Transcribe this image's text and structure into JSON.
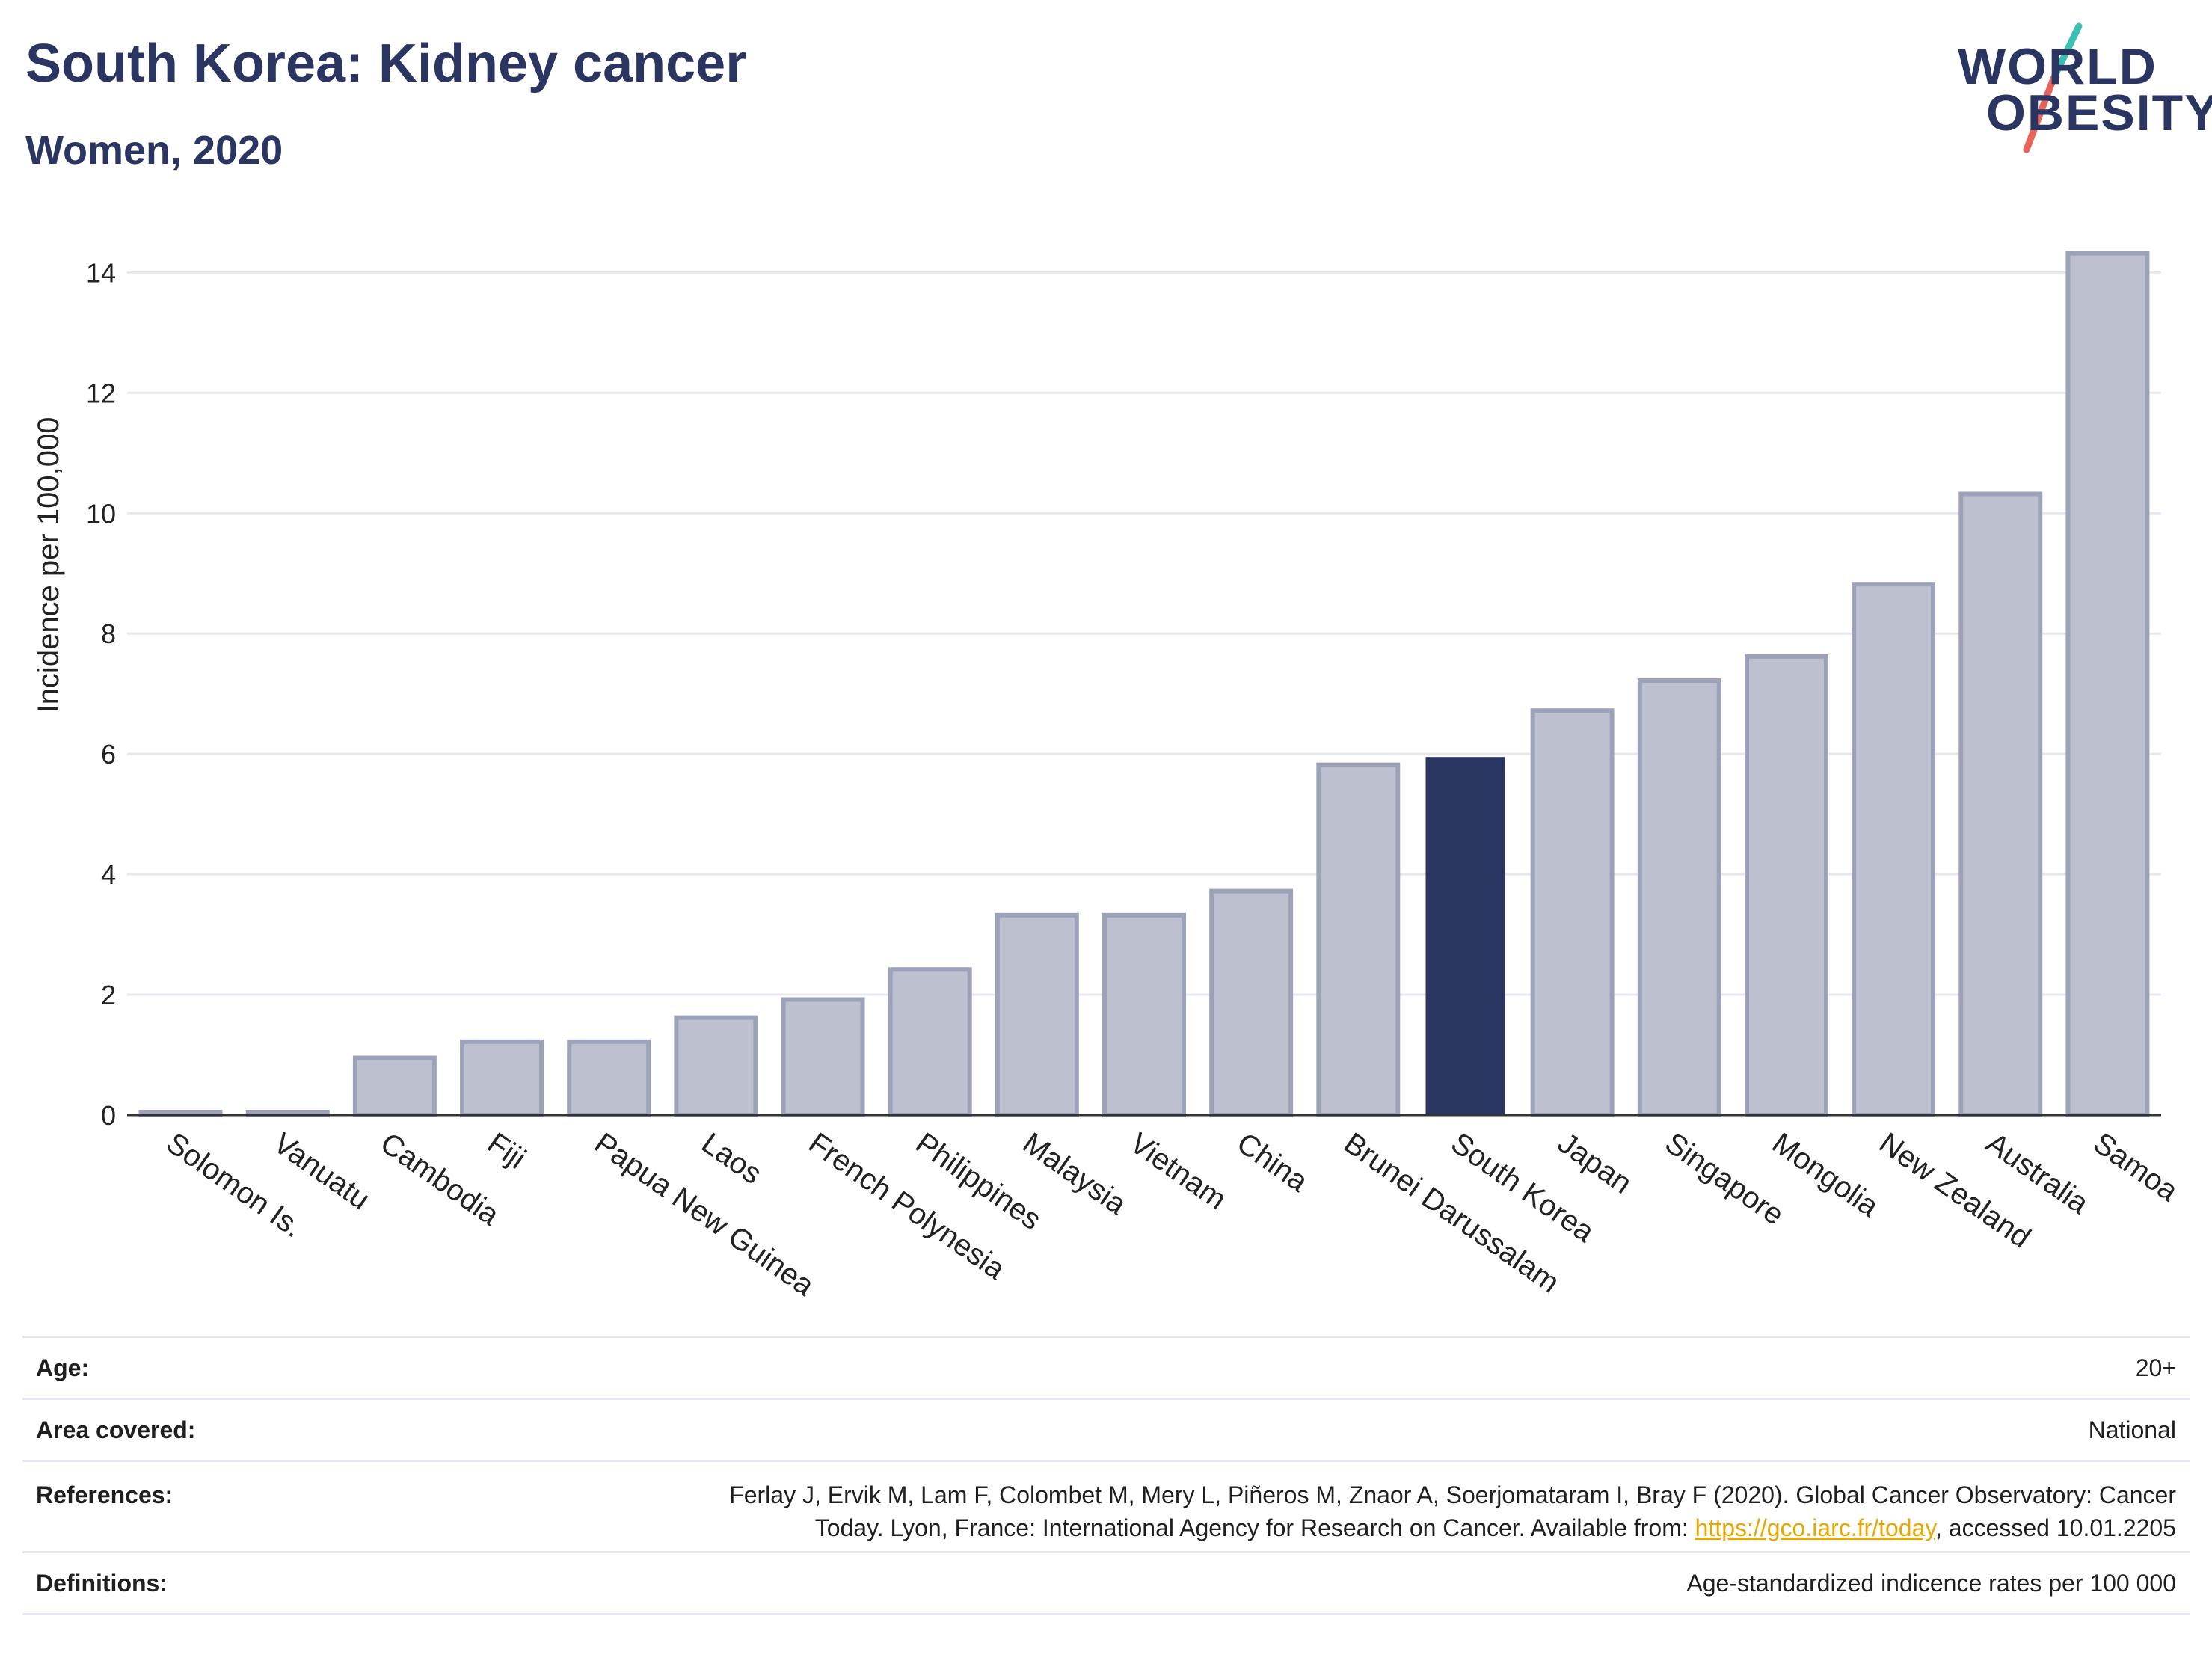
{
  "header": {
    "title": "South Korea: Kidney cancer",
    "subtitle": "Women, 2020"
  },
  "logo": {
    "line1": "WORLD",
    "line2": "OBESITY",
    "accent_colors": [
      "#3bbfb3",
      "#e8635a"
    ]
  },
  "colors": {
    "bar_fill": "#bdc1cf",
    "bar_stroke": "#9ca2b8",
    "highlight": "#2b3562",
    "grid": "#e6e8ef",
    "axis": "#333333"
  },
  "chart_data": {
    "type": "bar",
    "title": "South Korea: Kidney cancer",
    "subtitle": "Women, 2020",
    "ylabel": "Incidence per 100,000",
    "xlabel": "",
    "ylim": [
      0,
      14.8
    ],
    "yticks": [
      0,
      2,
      4,
      6,
      8,
      10,
      12,
      14
    ],
    "grid": true,
    "highlight": "South Korea",
    "categories": [
      "Solomon Is.",
      "Vanuatu",
      "Cambodia",
      "Fiji",
      "Papua New Guinea",
      "Laos",
      "French Polynesia",
      "Philippines",
      "Malaysia",
      "Vietnam",
      "China",
      "Brunei Darussalam",
      "South Korea",
      "Japan",
      "Singapore",
      "Mongolia",
      "New Zealand",
      "Australia",
      "Samoa"
    ],
    "values": [
      0.05,
      0.05,
      0.95,
      1.22,
      1.22,
      1.62,
      1.92,
      2.42,
      3.32,
      3.32,
      3.72,
      5.82,
      5.95,
      6.72,
      7.22,
      7.62,
      8.82,
      10.32,
      14.32
    ]
  },
  "info": {
    "age_label": "Age:",
    "age_value": "20+",
    "area_label": "Area covered:",
    "area_value": "National",
    "ref_label": "References:",
    "ref_text_1": "Ferlay J, Ervik M, Lam F, Colombet M, Mery L, Piñeros M, Znaor A, Soerjomataram I, Bray F (2020). Global Cancer Observatory: Cancer",
    "ref_text_2": "Today. Lyon, France: International Agency for Research on Cancer. Available from: ",
    "ref_link": "https://gco.iarc.fr/today",
    "ref_text_3": ", accessed 10.01.2205",
    "def_label": "Definitions:",
    "def_value": "Age-standardized indicence rates per 100 000"
  }
}
